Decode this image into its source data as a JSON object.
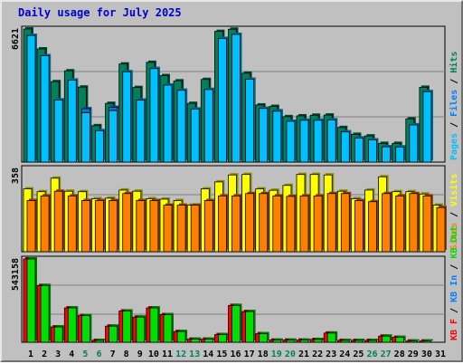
{
  "page": {
    "title": "Daily usage for July 2025",
    "colors": {
      "hits": "#00805c",
      "files": "#0080ff",
      "pages": "#00c0ff",
      "visits": "#ffff00",
      "sites": "#ff8000",
      "kbin": "#ff0000",
      "kbout": "#00e000",
      "title": "#0000d0",
      "panel": "#c0c0c0",
      "grid": "#808080",
      "weekend_label": "#00805c",
      "weekday_label": "#000000"
    }
  },
  "chart_data": [
    {
      "type": "bar",
      "panel": "hits-files-pages",
      "ytick_label": "6621",
      "ylim": [
        0,
        6621
      ],
      "right_labels": [
        {
          "text": "Pages",
          "color": "#00c0ff"
        },
        {
          "text": " / ",
          "color": "#000000"
        },
        {
          "text": "Files",
          "color": "#0080ff"
        },
        {
          "text": " / ",
          "color": "#000000"
        },
        {
          "text": "Hits",
          "color": "#00805c"
        }
      ],
      "series": [
        {
          "name": "Hits",
          "color": "#00805c",
          "values": [
            6621,
            5630,
            4000,
            4540,
            3730,
            1810,
            2920,
            4880,
            3710,
            4960,
            4300,
            4040,
            2920,
            4110,
            6500,
            6610,
            4420,
            2840,
            2770,
            2260,
            2300,
            2330,
            2340,
            1720,
            1380,
            1300,
            930,
            930,
            2150,
            3720,
            0
          ]
        },
        {
          "name": "Files",
          "color": "#0080ff",
          "values": [
            6300,
            5290,
            3090,
            4080,
            2650,
            1560,
            2720,
            4490,
            3080,
            4650,
            3830,
            3570,
            2640,
            3610,
            6150,
            6350,
            4120,
            2670,
            2550,
            2030,
            2080,
            2080,
            2100,
            1500,
            1200,
            1100,
            760,
            750,
            1850,
            3500,
            0
          ]
        },
        {
          "name": "Pages",
          "color": "#00c0ff",
          "values": [
            6300,
            5290,
            3090,
            4080,
            2450,
            1560,
            2560,
            4490,
            3080,
            4650,
            3830,
            3570,
            2640,
            3610,
            6150,
            6350,
            4120,
            2670,
            2530,
            2030,
            2080,
            2080,
            2100,
            1500,
            1200,
            1100,
            760,
            750,
            1850,
            3500,
            0
          ]
        }
      ]
    },
    {
      "type": "bar",
      "panel": "visits-sites",
      "ytick_label": "358",
      "ylim": [
        0,
        358
      ],
      "right_labels": [
        {
          "text": "Sites",
          "color": "#ff8000"
        },
        {
          "text": " / ",
          "color": "#000000"
        },
        {
          "text": "Visits",
          "color": "#ffff00"
        }
      ],
      "series": [
        {
          "name": "Visits",
          "color": "#ffff00",
          "values": [
            270,
            258,
            316,
            260,
            258,
            228,
            230,
            265,
            260,
            228,
            226,
            220,
            200,
            270,
            300,
            330,
            332,
            270,
            264,
            285,
            332,
            332,
            330,
            260,
            228,
            265,
            322,
            258,
            258,
            248,
            200
          ]
        },
        {
          "name": "Sites",
          "color": "#ff8000",
          "values": [
            220,
            240,
            260,
            240,
            220,
            220,
            220,
            250,
            220,
            220,
            200,
            200,
            200,
            220,
            240,
            240,
            250,
            250,
            240,
            238,
            240,
            240,
            250,
            250,
            220,
            215,
            250,
            240,
            250,
            240,
            190
          ]
        }
      ]
    },
    {
      "type": "bar",
      "panel": "kb",
      "ytick_label": "543158",
      "ylim": [
        0,
        543158
      ],
      "right_labels": [
        {
          "text": "KB F",
          "color": "#ff0000"
        },
        {
          "text": " / ",
          "color": "#000000"
        },
        {
          "text": "KB In",
          "color": "#0080ff"
        },
        {
          "text": " / ",
          "color": "#000000"
        },
        {
          "text": "KB Out",
          "color": "#00e000"
        }
      ],
      "series": [
        {
          "name": "KB F",
          "color": "#ff0000",
          "values": [
            543158,
            370000,
            100000,
            224000,
            174000,
            12000,
            105000,
            204000,
            164000,
            224000,
            180000,
            70000,
            20000,
            20000,
            50000,
            240000,
            200000,
            56000,
            14000,
            14000,
            14000,
            18000,
            60000,
            12000,
            12000,
            12000,
            40000,
            32000,
            8000,
            8000,
            0
          ]
        },
        {
          "name": "KB Out",
          "color": "#00e000",
          "values": [
            543158,
            370000,
            100000,
            224000,
            174000,
            12000,
            105000,
            204000,
            164000,
            224000,
            180000,
            70000,
            20000,
            20000,
            50000,
            240000,
            200000,
            56000,
            14000,
            14000,
            14000,
            18000,
            60000,
            12000,
            12000,
            12000,
            40000,
            32000,
            8000,
            8000,
            0
          ]
        }
      ]
    }
  ],
  "x_axis": {
    "labels": [
      "1",
      "2",
      "3",
      "4",
      "5",
      "6",
      "7",
      "8",
      "9",
      "10",
      "11",
      "12",
      "13",
      "14",
      "15",
      "16",
      "17",
      "18",
      "19",
      "20",
      "21",
      "22",
      "23",
      "24",
      "25",
      "26",
      "27",
      "28",
      "29",
      "30",
      "31"
    ],
    "weekend_days": [
      "5",
      "6",
      "12",
      "13",
      "19",
      "20",
      "26",
      "27"
    ]
  }
}
